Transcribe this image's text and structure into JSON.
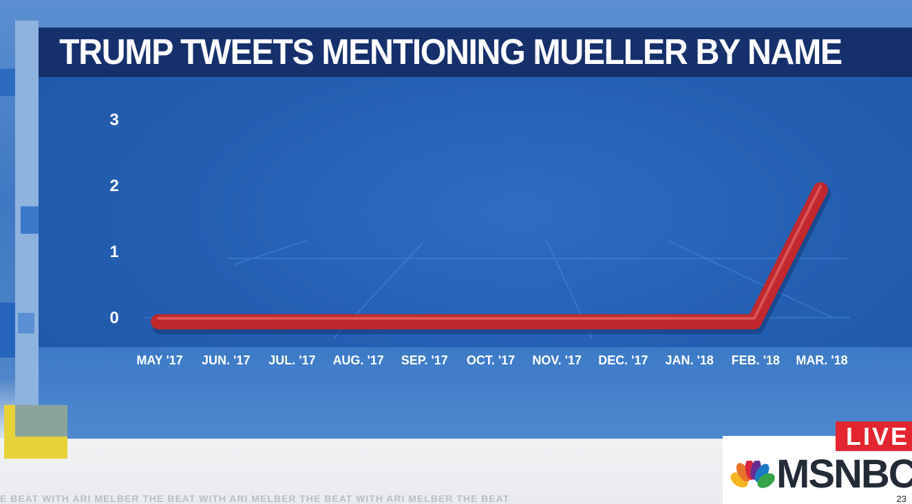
{
  "title": "TRUMP TWEETS MENTIONING MUELLER BY NAME",
  "chart_data": {
    "type": "line",
    "title": "TRUMP TWEETS MENTIONING MUELLER BY NAME",
    "categories": [
      "MAY '17",
      "JUN. '17",
      "JUL. '17",
      "AUG. '17",
      "SEP. '17",
      "OCT. '17",
      "NOV. '17",
      "DEC. '17",
      "JAN. '18",
      "FEB. '18",
      "MAR. '18"
    ],
    "values": [
      0,
      0,
      0,
      0,
      0,
      0,
      0,
      0,
      0,
      0,
      2
    ],
    "y_ticks": [
      "3",
      "2",
      "1",
      "0"
    ],
    "ylim": [
      0,
      3
    ],
    "line_color": "#c0282d",
    "grid": false,
    "legend": "none"
  },
  "overlay": {
    "live_label": "LIVE",
    "network": "MSNBC",
    "ticker_text": "E BEAT WITH ARI MELBER    THE BEAT WITH ARI MELBER    THE BEAT WITH ARI MELBER    THE BEAT",
    "page_number": "23"
  },
  "colors": {
    "panel": "#245fb2",
    "title_bar": "#16306b",
    "live": "#e2252e"
  }
}
